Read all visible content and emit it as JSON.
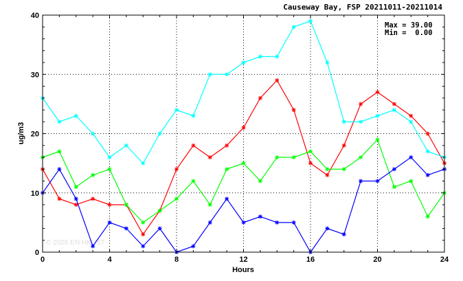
{
  "chart_data": {
    "type": "line",
    "title": "Causeway Bay, FSP 20211011-20211014",
    "xlabel": "Hours",
    "ylabel": "ug/m3",
    "xlim": [
      0,
      24
    ],
    "ylim": [
      0,
      40
    ],
    "x_ticks": [
      0,
      4,
      8,
      12,
      16,
      20,
      24
    ],
    "y_ticks": [
      0,
      10,
      20,
      30,
      40
    ],
    "grid": "dotted",
    "stats": {
      "max_label": "Max = 39.00",
      "min_label": "Min =  0.00"
    },
    "watermark": "© 2026  EN  HKUST",
    "x": [
      0,
      1,
      2,
      3,
      4,
      5,
      6,
      7,
      8,
      9,
      10,
      11,
      12,
      13,
      14,
      15,
      16,
      17,
      18,
      19,
      20,
      21,
      22,
      23,
      24
    ],
    "series": [
      {
        "color": "#ff0000",
        "values": [
          14,
          9,
          8,
          9,
          8,
          8,
          3,
          7,
          14,
          18,
          16,
          18,
          21,
          26,
          29,
          24,
          15,
          13,
          18,
          25,
          27,
          25,
          23,
          20,
          15
        ]
      },
      {
        "color": "#00ffff",
        "values": [
          26,
          22,
          23,
          20,
          16,
          18,
          15,
          20,
          24,
          23,
          30,
          30,
          32,
          33,
          33,
          38,
          39,
          32,
          22,
          22,
          23,
          24,
          22,
          17,
          16
        ]
      },
      {
        "color": "#00ff00",
        "values": [
          16,
          17,
          11,
          13,
          14,
          8,
          5,
          7,
          9,
          12,
          8,
          14,
          15,
          12,
          16,
          16,
          17,
          14,
          14,
          16,
          19,
          11,
          12,
          6,
          10
        ]
      },
      {
        "color": "#0000ff",
        "values": [
          10,
          14,
          9,
          1,
          5,
          4,
          1,
          4,
          0,
          1,
          5,
          9,
          5,
          6,
          5,
          5,
          0,
          4,
          3,
          12,
          12,
          14,
          16,
          13,
          14
        ]
      }
    ]
  }
}
